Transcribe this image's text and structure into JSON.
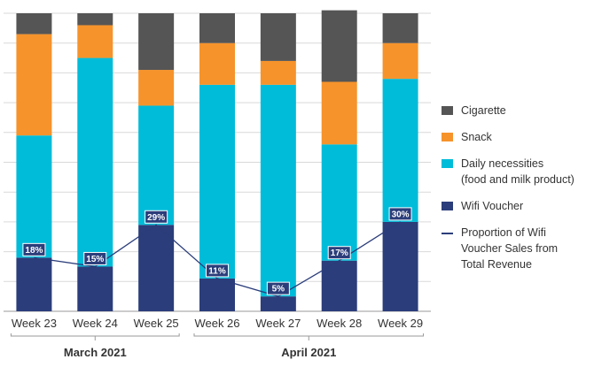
{
  "chart_data": {
    "type": "bar",
    "stacked": true,
    "categories": [
      "Week 23",
      "Week 24",
      "Week 25",
      "Week 26",
      "Week 27",
      "Week 28",
      "Week 29"
    ],
    "groups": [
      {
        "label": "March 2021",
        "from": 0,
        "to": 2
      },
      {
        "label": "April 2021",
        "from": 3,
        "to": 6
      }
    ],
    "ylim": [
      0,
      100
    ],
    "grid": true,
    "series": [
      {
        "name": "Wifi Voucher",
        "color": "#2b3d7a",
        "values": [
          18,
          15,
          29,
          11,
          5,
          17,
          30
        ]
      },
      {
        "name": "Daily necessities\n(food and milk product)",
        "color": "#00bcd9",
        "values": [
          41,
          70,
          40,
          65,
          71,
          39,
          48
        ]
      },
      {
        "name": "Snack",
        "color": "#f6932b",
        "values": [
          34,
          11,
          12,
          14,
          8,
          21,
          12
        ]
      },
      {
        "name": "Cigarette",
        "color": "#555555",
        "values": [
          7,
          4,
          19,
          10,
          16,
          24,
          10
        ]
      }
    ],
    "line_series": {
      "name": "Proportion of Wifi Voucher Sales from Total Revenue",
      "legend_text": "Proportion of Wifi\nVoucher Sales from\nTotal Revenue",
      "color": "#2b3d7a",
      "values": [
        18,
        15,
        29,
        11,
        5,
        17,
        30
      ],
      "labels": [
        "18%",
        "15%",
        "29%",
        "11%",
        "5%",
        "17%",
        "30%"
      ]
    },
    "legend": {
      "position": "right",
      "order": [
        "Cigarette",
        "Snack",
        "Daily necessities\n(food and milk product)",
        "Wifi Voucher",
        "line"
      ]
    }
  }
}
